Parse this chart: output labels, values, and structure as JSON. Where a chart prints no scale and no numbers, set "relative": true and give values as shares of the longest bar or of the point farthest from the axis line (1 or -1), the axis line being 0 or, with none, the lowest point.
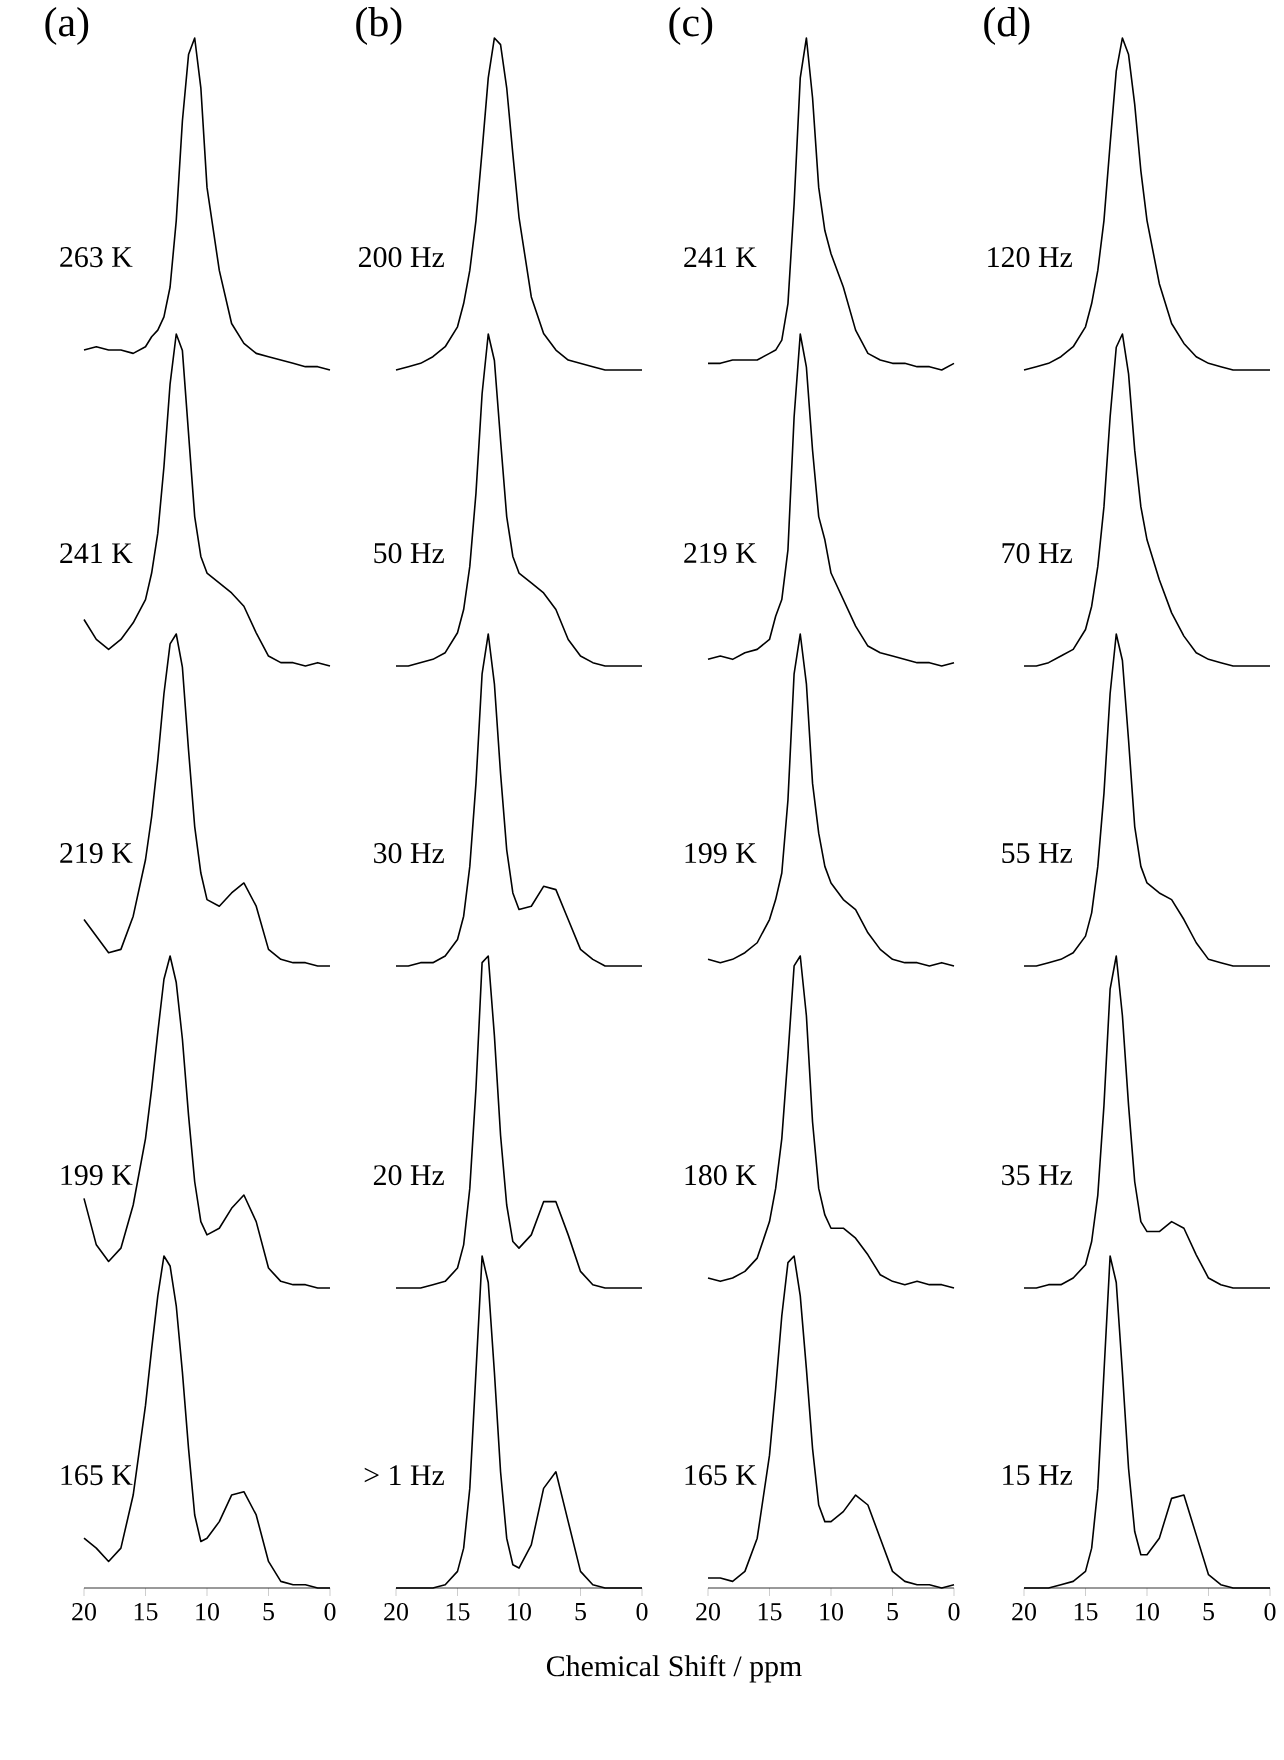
{
  "chart_data": [
    {
      "type": "line",
      "relative": true,
      "title": "(a)",
      "xlim": [
        20,
        0
      ],
      "tick_labels": false,
      "x": [
        20,
        19,
        18,
        17,
        16,
        15,
        14.5,
        14,
        13.5,
        13,
        12.5,
        12,
        11.5,
        11,
        10.5,
        10,
        9,
        8,
        7,
        6,
        5,
        4,
        3,
        2,
        1,
        0
      ],
      "series": [
        {
          "name": "263 K",
          "color": "#000000",
          "values": [
            0.06,
            0.07,
            0.06,
            0.06,
            0.05,
            0.07,
            0.1,
            0.12,
            0.16,
            0.25,
            0.45,
            0.75,
            0.95,
            1.0,
            0.85,
            0.55,
            0.3,
            0.14,
            0.08,
            0.05,
            0.04,
            0.03,
            0.02,
            0.01,
            0.01,
            0
          ]
        }
      ]
    },
    {
      "type": "line",
      "relative": true,
      "xlim": [
        20,
        0
      ],
      "tick_labels": false,
      "x": [
        20,
        19,
        18,
        17,
        16,
        15,
        14.5,
        14,
        13.5,
        13,
        12.5,
        12,
        11.5,
        11,
        10.5,
        10,
        9,
        8,
        7,
        6,
        5,
        4,
        3,
        2,
        1,
        0
      ],
      "series": [
        {
          "name": "241 K",
          "color": "#000000",
          "values": [
            0.14,
            0.08,
            0.05,
            0.08,
            0.13,
            0.2,
            0.28,
            0.4,
            0.6,
            0.85,
            1.0,
            0.95,
            0.7,
            0.45,
            0.33,
            0.28,
            0.25,
            0.22,
            0.18,
            0.1,
            0.03,
            0.01,
            0.01,
            0,
            0.01,
            0
          ]
        }
      ]
    },
    {
      "type": "line",
      "relative": true,
      "xlim": [
        20,
        0
      ],
      "tick_labels": false,
      "x": [
        20,
        19,
        18,
        17,
        16,
        15,
        14.5,
        14,
        13.5,
        13,
        12.5,
        12,
        11.5,
        11,
        10.5,
        10,
        9,
        8,
        7,
        6,
        5,
        4,
        3,
        2,
        1,
        0
      ],
      "series": [
        {
          "name": "219 K",
          "color": "#000000",
          "values": [
            0.14,
            0.09,
            0.04,
            0.05,
            0.15,
            0.32,
            0.45,
            0.62,
            0.82,
            0.97,
            1.0,
            0.9,
            0.65,
            0.42,
            0.28,
            0.2,
            0.18,
            0.22,
            0.25,
            0.18,
            0.05,
            0.02,
            0.01,
            0.01,
            0,
            0
          ]
        }
      ]
    },
    {
      "type": "line",
      "relative": true,
      "xlim": [
        20,
        0
      ],
      "tick_labels": false,
      "x": [
        20,
        19,
        18,
        17,
        16,
        15,
        14.5,
        14,
        13.5,
        13,
        12.5,
        12,
        11.5,
        11,
        10.5,
        10,
        9,
        8,
        7,
        6,
        5,
        4,
        3,
        2,
        1,
        0
      ],
      "series": [
        {
          "name": "199 K",
          "color": "#000000",
          "values": [
            0.27,
            0.13,
            0.08,
            0.12,
            0.25,
            0.45,
            0.6,
            0.77,
            0.93,
            1.0,
            0.92,
            0.75,
            0.52,
            0.32,
            0.2,
            0.16,
            0.18,
            0.24,
            0.28,
            0.2,
            0.06,
            0.02,
            0.01,
            0.01,
            0,
            0
          ]
        }
      ]
    },
    {
      "type": "line",
      "relative": true,
      "xlim": [
        20,
        0
      ],
      "xticks": [
        20,
        15,
        10,
        5,
        0
      ],
      "tick_labels": "x",
      "x": [
        20,
        19,
        18,
        17,
        16,
        15,
        14.5,
        14,
        13.5,
        13,
        12.5,
        12,
        11.5,
        11,
        10.5,
        10,
        9,
        8,
        7,
        6,
        5,
        4,
        3,
        2,
        1,
        0
      ],
      "series": [
        {
          "name": "165 K",
          "color": "#000000",
          "values": [
            0.15,
            0.12,
            0.08,
            0.12,
            0.28,
            0.55,
            0.72,
            0.88,
            1.0,
            0.97,
            0.85,
            0.65,
            0.42,
            0.22,
            0.14,
            0.15,
            0.2,
            0.28,
            0.29,
            0.22,
            0.08,
            0.02,
            0.01,
            0.01,
            0,
            0
          ]
        }
      ]
    },
    {
      "type": "line",
      "relative": true,
      "title": "(b)",
      "xlim": [
        20,
        0
      ],
      "tick_labels": false,
      "x": [
        20,
        19,
        18,
        17,
        16,
        15,
        14.5,
        14,
        13.5,
        13,
        12.5,
        12,
        11.5,
        11,
        10.5,
        10,
        9,
        8,
        7,
        6,
        5,
        4,
        3,
        2,
        1,
        0
      ],
      "series": [
        {
          "name": "200 Hz",
          "color": "#000000",
          "values": [
            0,
            0.01,
            0.02,
            0.04,
            0.07,
            0.13,
            0.2,
            0.3,
            0.45,
            0.66,
            0.88,
            1.0,
            0.98,
            0.85,
            0.65,
            0.46,
            0.22,
            0.11,
            0.06,
            0.03,
            0.02,
            0.01,
            0,
            0,
            0,
            0
          ]
        }
      ]
    },
    {
      "type": "line",
      "relative": true,
      "xlim": [
        20,
        0
      ],
      "tick_labels": false,
      "x": [
        20,
        19,
        18,
        17,
        16,
        15,
        14.5,
        14,
        13.5,
        13,
        12.5,
        12,
        11.5,
        11,
        10.5,
        10,
        9,
        8,
        7,
        6,
        5,
        4,
        3,
        2,
        1,
        0
      ],
      "series": [
        {
          "name": "50 Hz",
          "color": "#000000",
          "values": [
            0,
            0,
            0.01,
            0.02,
            0.04,
            0.1,
            0.17,
            0.3,
            0.52,
            0.82,
            1.0,
            0.92,
            0.68,
            0.45,
            0.33,
            0.28,
            0.25,
            0.22,
            0.17,
            0.08,
            0.03,
            0.01,
            0,
            0,
            0,
            0
          ]
        }
      ]
    },
    {
      "type": "line",
      "relative": true,
      "xlim": [
        20,
        0
      ],
      "tick_labels": false,
      "x": [
        20,
        19,
        18,
        17,
        16,
        15,
        14.5,
        14,
        13.5,
        13,
        12.5,
        12,
        11.5,
        11,
        10.5,
        10,
        9,
        8,
        7,
        6,
        5,
        4,
        3,
        2,
        1,
        0
      ],
      "series": [
        {
          "name": "30 Hz",
          "color": "#000000",
          "values": [
            0,
            0,
            0.01,
            0.01,
            0.03,
            0.08,
            0.15,
            0.3,
            0.55,
            0.88,
            1.0,
            0.85,
            0.58,
            0.35,
            0.22,
            0.17,
            0.18,
            0.24,
            0.23,
            0.14,
            0.05,
            0.02,
            0,
            0,
            0,
            0
          ]
        }
      ]
    },
    {
      "type": "line",
      "relative": true,
      "xlim": [
        20,
        0
      ],
      "tick_labels": false,
      "x": [
        20,
        19,
        18,
        17,
        16,
        15,
        14.5,
        14,
        13.5,
        13,
        12.5,
        12,
        11.5,
        11,
        10.5,
        10,
        9,
        8,
        7,
        6,
        5,
        4,
        3,
        2,
        1,
        0
      ],
      "series": [
        {
          "name": "20 Hz",
          "color": "#000000",
          "values": [
            0,
            0,
            0,
            0.01,
            0.02,
            0.06,
            0.13,
            0.3,
            0.6,
            0.98,
            1.0,
            0.76,
            0.46,
            0.25,
            0.14,
            0.12,
            0.16,
            0.26,
            0.26,
            0.16,
            0.05,
            0.01,
            0,
            0,
            0,
            0
          ]
        }
      ]
    },
    {
      "type": "line",
      "relative": true,
      "xlim": [
        20,
        0
      ],
      "xticks": [
        20,
        15,
        10,
        5,
        0
      ],
      "tick_labels": "x",
      "xlabel": "Chemical Shift / ppm",
      "x": [
        20,
        19,
        18,
        17,
        16,
        15,
        14.5,
        14,
        13.5,
        13,
        12.5,
        12,
        11.5,
        11,
        10.5,
        10,
        9,
        8,
        7,
        6,
        5,
        4,
        3,
        2,
        1,
        0
      ],
      "series": [
        {
          "name": "> 1 Hz",
          "color": "#000000",
          "values": [
            0,
            0,
            0,
            0,
            0.01,
            0.05,
            0.12,
            0.3,
            0.65,
            1.0,
            0.92,
            0.65,
            0.35,
            0.15,
            0.07,
            0.06,
            0.13,
            0.3,
            0.35,
            0.2,
            0.05,
            0.01,
            0,
            0,
            0,
            0
          ]
        }
      ]
    },
    {
      "type": "line",
      "relative": true,
      "title": "(c)",
      "xlim": [
        20,
        0
      ],
      "tick_labels": false,
      "x": [
        20,
        19,
        18,
        17,
        16,
        15,
        14.5,
        14,
        13.5,
        13,
        12.5,
        12,
        11.5,
        11,
        10.5,
        10,
        9,
        8,
        7,
        6,
        5,
        4,
        3,
        2,
        1,
        0
      ],
      "series": [
        {
          "name": "241 K",
          "color": "#000000",
          "values": [
            0.02,
            0.02,
            0.03,
            0.03,
            0.03,
            0.05,
            0.06,
            0.09,
            0.2,
            0.5,
            0.88,
            1.0,
            0.82,
            0.55,
            0.42,
            0.35,
            0.25,
            0.12,
            0.05,
            0.03,
            0.02,
            0.02,
            0.01,
            0.01,
            0,
            0.02
          ]
        }
      ]
    },
    {
      "type": "line",
      "relative": true,
      "xlim": [
        20,
        0
      ],
      "tick_labels": false,
      "x": [
        20,
        19,
        18,
        17,
        16,
        15,
        14.5,
        14,
        13.5,
        13,
        12.5,
        12,
        11.5,
        11,
        10.5,
        10,
        9,
        8,
        7,
        6,
        5,
        4,
        3,
        2,
        1,
        0
      ],
      "series": [
        {
          "name": "219 K",
          "color": "#000000",
          "values": [
            0.02,
            0.03,
            0.02,
            0.04,
            0.05,
            0.08,
            0.15,
            0.2,
            0.35,
            0.75,
            1.0,
            0.9,
            0.65,
            0.45,
            0.38,
            0.28,
            0.2,
            0.12,
            0.06,
            0.04,
            0.03,
            0.02,
            0.01,
            0.01,
            0,
            0.01
          ]
        }
      ]
    },
    {
      "type": "line",
      "relative": true,
      "xlim": [
        20,
        0
      ],
      "tick_labels": false,
      "x": [
        20,
        19,
        18,
        17,
        16,
        15,
        14.5,
        14,
        13.5,
        13,
        12.5,
        12,
        11.5,
        11,
        10.5,
        10,
        9,
        8,
        7,
        6,
        5,
        4,
        3,
        2,
        1,
        0
      ],
      "series": [
        {
          "name": "199 K",
          "color": "#000000",
          "values": [
            0.02,
            0.01,
            0.02,
            0.04,
            0.07,
            0.14,
            0.2,
            0.28,
            0.5,
            0.88,
            1.0,
            0.85,
            0.55,
            0.4,
            0.3,
            0.25,
            0.2,
            0.17,
            0.1,
            0.05,
            0.02,
            0.01,
            0.01,
            0,
            0.01,
            0
          ]
        }
      ]
    },
    {
      "type": "line",
      "relative": true,
      "xlim": [
        20,
        0
      ],
      "tick_labels": false,
      "x": [
        20,
        19,
        18,
        17,
        16,
        15,
        14.5,
        14,
        13.5,
        13,
        12.5,
        12,
        11.5,
        11,
        10.5,
        10,
        9,
        8,
        7,
        6,
        5,
        4,
        3,
        2,
        1,
        0
      ],
      "series": [
        {
          "name": "180 K",
          "color": "#000000",
          "values": [
            0.03,
            0.02,
            0.03,
            0.05,
            0.09,
            0.2,
            0.3,
            0.45,
            0.7,
            0.97,
            1.0,
            0.82,
            0.5,
            0.3,
            0.22,
            0.18,
            0.18,
            0.15,
            0.1,
            0.04,
            0.02,
            0.01,
            0.02,
            0.01,
            0.01,
            0
          ]
        }
      ]
    },
    {
      "type": "line",
      "relative": true,
      "xlim": [
        20,
        0
      ],
      "xticks": [
        20,
        15,
        10,
        5,
        0
      ],
      "tick_labels": "x",
      "x": [
        20,
        19,
        18,
        17,
        16,
        15,
        14.5,
        14,
        13.5,
        13,
        12.5,
        12,
        11.5,
        11,
        10.5,
        10,
        9,
        8,
        7,
        6,
        5,
        4,
        3,
        2,
        1,
        0
      ],
      "series": [
        {
          "name": "165 K",
          "color": "#000000",
          "values": [
            0.03,
            0.03,
            0.02,
            0.05,
            0.15,
            0.4,
            0.6,
            0.82,
            0.98,
            1.0,
            0.88,
            0.66,
            0.42,
            0.25,
            0.2,
            0.2,
            0.23,
            0.28,
            0.25,
            0.15,
            0.05,
            0.02,
            0.01,
            0.01,
            0,
            0.01
          ]
        }
      ]
    },
    {
      "type": "line",
      "relative": true,
      "title": "(d)",
      "xlim": [
        20,
        0
      ],
      "tick_labels": false,
      "x": [
        20,
        19,
        18,
        17,
        16,
        15,
        14.5,
        14,
        13.5,
        13,
        12.5,
        12,
        11.5,
        11,
        10.5,
        10,
        9,
        8,
        7,
        6,
        5,
        4,
        3,
        2,
        1,
        0
      ],
      "series": [
        {
          "name": "120 Hz",
          "color": "#000000",
          "values": [
            0,
            0.01,
            0.02,
            0.04,
            0.07,
            0.13,
            0.2,
            0.3,
            0.45,
            0.68,
            0.9,
            1.0,
            0.95,
            0.8,
            0.6,
            0.45,
            0.26,
            0.14,
            0.08,
            0.04,
            0.02,
            0.01,
            0,
            0,
            0,
            0
          ]
        }
      ]
    },
    {
      "type": "line",
      "relative": true,
      "xlim": [
        20,
        0
      ],
      "tick_labels": false,
      "x": [
        20,
        19,
        18,
        17,
        16,
        15,
        14.5,
        14,
        13.5,
        13,
        12.5,
        12,
        11.5,
        11,
        10.5,
        10,
        9,
        8,
        7,
        6,
        5,
        4,
        3,
        2,
        1,
        0
      ],
      "series": [
        {
          "name": "70 Hz",
          "color": "#000000",
          "values": [
            0,
            0,
            0.01,
            0.03,
            0.05,
            0.11,
            0.18,
            0.3,
            0.48,
            0.75,
            0.96,
            1.0,
            0.88,
            0.65,
            0.48,
            0.38,
            0.26,
            0.16,
            0.09,
            0.04,
            0.02,
            0.01,
            0,
            0,
            0,
            0
          ]
        }
      ]
    },
    {
      "type": "line",
      "relative": true,
      "xlim": [
        20,
        0
      ],
      "tick_labels": false,
      "x": [
        20,
        19,
        18,
        17,
        16,
        15,
        14.5,
        14,
        13.5,
        13,
        12.5,
        12,
        11.5,
        11,
        10.5,
        10,
        9,
        8,
        7,
        6,
        5,
        4,
        3,
        2,
        1,
        0
      ],
      "series": [
        {
          "name": "55 Hz",
          "color": "#000000",
          "values": [
            0,
            0,
            0.01,
            0.02,
            0.04,
            0.09,
            0.16,
            0.3,
            0.52,
            0.82,
            1.0,
            0.92,
            0.68,
            0.42,
            0.3,
            0.25,
            0.22,
            0.2,
            0.14,
            0.07,
            0.02,
            0.01,
            0,
            0,
            0,
            0
          ]
        }
      ]
    },
    {
      "type": "line",
      "relative": true,
      "xlim": [
        20,
        0
      ],
      "tick_labels": false,
      "x": [
        20,
        19,
        18,
        17,
        16,
        15,
        14.5,
        14,
        13.5,
        13,
        12.5,
        12,
        11.5,
        11,
        10.5,
        10,
        9,
        8,
        7,
        6,
        5,
        4,
        3,
        2,
        1,
        0
      ],
      "series": [
        {
          "name": "35 Hz",
          "color": "#000000",
          "values": [
            0,
            0,
            0.01,
            0.01,
            0.03,
            0.07,
            0.14,
            0.28,
            0.55,
            0.9,
            1.0,
            0.82,
            0.55,
            0.32,
            0.2,
            0.17,
            0.17,
            0.2,
            0.18,
            0.1,
            0.03,
            0.01,
            0,
            0,
            0,
            0
          ]
        }
      ]
    },
    {
      "type": "line",
      "relative": true,
      "xlim": [
        20,
        0
      ],
      "xticks": [
        20,
        15,
        10,
        5,
        0
      ],
      "tick_labels": "x",
      "x": [
        20,
        19,
        18,
        17,
        16,
        15,
        14.5,
        14,
        13.5,
        13,
        12.5,
        12,
        11.5,
        11,
        10.5,
        10,
        9,
        8,
        7,
        6,
        5,
        4,
        3,
        2,
        1,
        0
      ],
      "series": [
        {
          "name": "15 Hz",
          "color": "#000000",
          "values": [
            0,
            0,
            0,
            0.01,
            0.02,
            0.05,
            0.12,
            0.3,
            0.65,
            1.0,
            0.92,
            0.65,
            0.36,
            0.17,
            0.1,
            0.1,
            0.15,
            0.27,
            0.28,
            0.16,
            0.04,
            0.01,
            0,
            0,
            0,
            0
          ]
        }
      ]
    }
  ]
}
